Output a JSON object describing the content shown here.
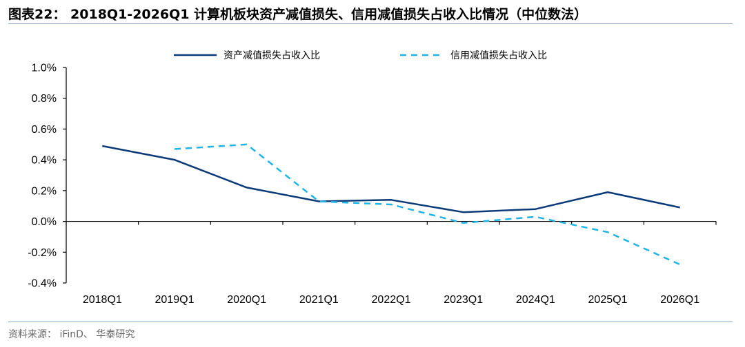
{
  "title": "图表22： 2018Q1-2026Q1 计算机板块资产减值损失、信用减值损失占收入比情况（中位数法）",
  "source": "资料来源： iFinD、 华泰研究",
  "chart_data": {
    "type": "line",
    "title": "图表22： 2018Q1-2026Q1 计算机板块资产减值损失、信用减值损失占收入比情况（中位数法）",
    "categories": [
      "2018Q1",
      "2019Q1",
      "2020Q1",
      "2021Q1",
      "2022Q1",
      "2023Q1",
      "2024Q1",
      "2025Q1",
      "2026Q1"
    ],
    "ylim": [
      -0.4,
      1.0
    ],
    "yticks": [
      "1.0%",
      "0.8%",
      "0.6%",
      "0.4%",
      "0.2%",
      "0.0%",
      "-0.2%",
      "-0.4%"
    ],
    "ytick_values": [
      1.0,
      0.8,
      0.6,
      0.4,
      0.2,
      0.0,
      -0.2,
      -0.4
    ],
    "unit": "%",
    "legend_position": "top",
    "grid": false,
    "series": [
      {
        "name": "资产减值损失占收入比",
        "color": "#0b3a78",
        "style": "solid",
        "values": [
          0.49,
          0.4,
          0.22,
          0.13,
          0.14,
          0.06,
          0.08,
          0.19,
          0.09
        ]
      },
      {
        "name": "信用减值损失占收入比",
        "color": "#1fb4e6",
        "style": "dashed",
        "values": [
          null,
          0.47,
          0.5,
          0.13,
          0.11,
          -0.01,
          0.03,
          -0.07,
          -0.28
        ]
      }
    ]
  }
}
